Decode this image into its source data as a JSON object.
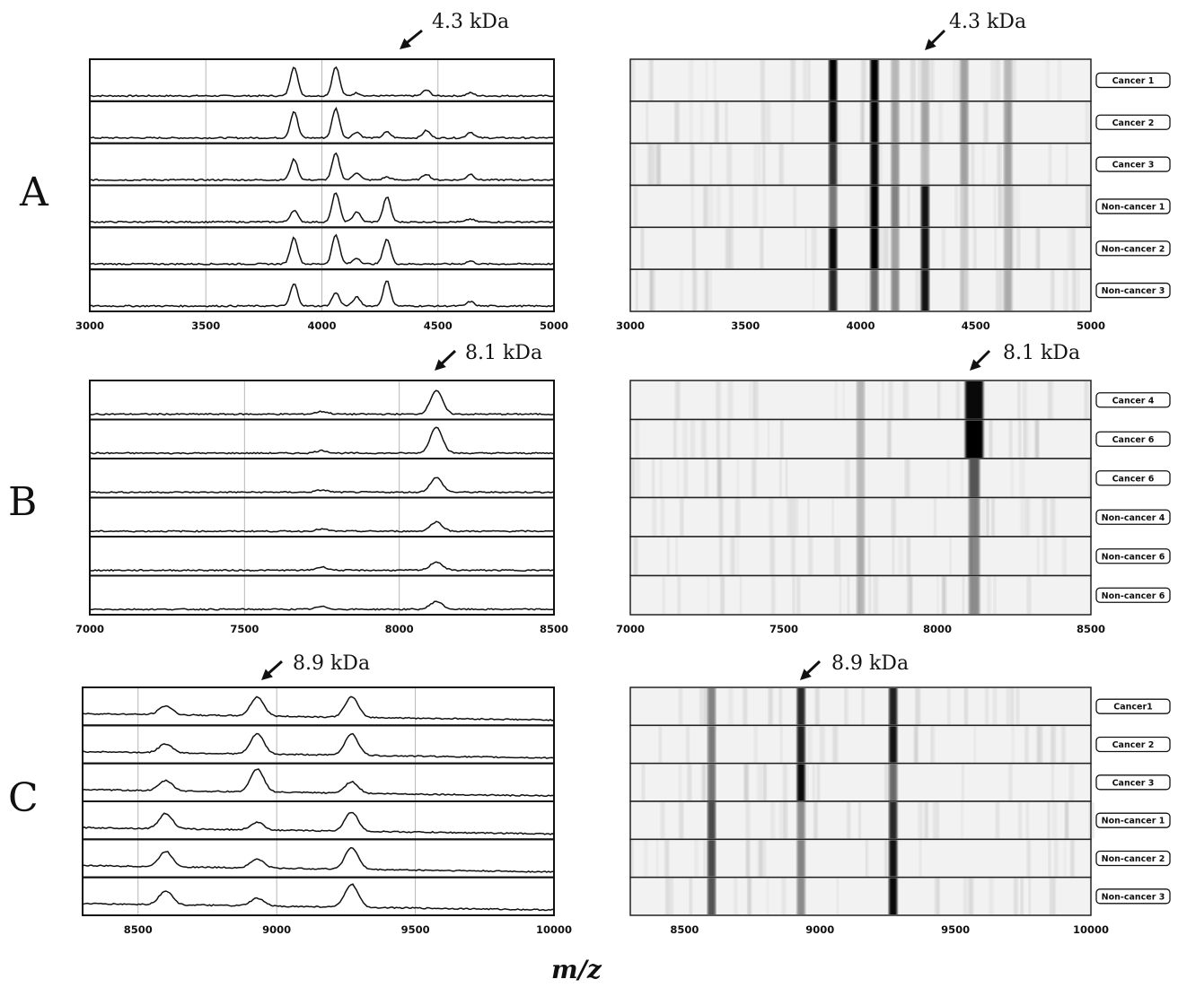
{
  "xlabel": "m/z",
  "panels": [
    {
      "letter": "A",
      "marker": "4.3 kDa",
      "xlim": [
        3000,
        5000
      ],
      "ticks": [
        3000,
        3500,
        4000,
        4500,
        5000
      ],
      "samples": [
        "Cancer 1",
        "Cancer 2",
        "Cancer 3",
        "Non-cancer 1",
        "Non-cancer 2",
        "Non-cancer 3"
      ]
    },
    {
      "letter": "B",
      "marker": "8.1 kDa",
      "xlim": [
        7000,
        8500
      ],
      "ticks": [
        7000,
        7500,
        8000,
        8500
      ],
      "samples": [
        "Cancer 4",
        "Cancer 6",
        "Cancer 6",
        "Non-cancer 4",
        "Non-cancer 6",
        "Non-cancer 6"
      ]
    },
    {
      "letter": "C",
      "marker": "8.9 kDa",
      "xlim": [
        8300,
        10000
      ],
      "ticks": [
        8500,
        9000,
        9500,
        10000
      ],
      "samples": [
        "Cancer1",
        "Cancer 2",
        "Cancer 3",
        "Non-cancer 1",
        "Non-cancer 2",
        "Non-cancer 3"
      ]
    }
  ],
  "chart_data": [
    {
      "type": "line",
      "panel": "A",
      "marker_mz": 4300,
      "x_range": [
        3000,
        5000
      ],
      "peaks_mz": [
        3880,
        4060,
        4150,
        4280,
        4450,
        4640
      ],
      "series": [
        {
          "name": "Cancer 1",
          "values": [
            1.0,
            1.0,
            0.1,
            0.0,
            0.2,
            0.1
          ]
        },
        {
          "name": "Cancer 2",
          "values": [
            0.9,
            1.0,
            0.2,
            0.2,
            0.25,
            0.2
          ]
        },
        {
          "name": "Cancer 3",
          "values": [
            0.7,
            0.9,
            0.25,
            0.1,
            0.2,
            0.2
          ]
        },
        {
          "name": "Non-cancer 1",
          "values": [
            0.4,
            1.0,
            0.35,
            0.85,
            0.0,
            0.1
          ]
        },
        {
          "name": "Non-cancer 2",
          "values": [
            0.9,
            1.0,
            0.2,
            0.85,
            0.0,
            0.1
          ]
        },
        {
          "name": "Non-cancer 3",
          "values": [
            0.75,
            0.45,
            0.3,
            0.85,
            0.0,
            0.15
          ]
        }
      ]
    },
    {
      "type": "line",
      "panel": "B",
      "marker_mz": 8100,
      "x_range": [
        7000,
        8500
      ],
      "peaks_mz": [
        7750,
        8120
      ],
      "series": [
        {
          "name": "Cancer 4",
          "values": [
            0.1,
            0.9
          ]
        },
        {
          "name": "Cancer 6",
          "values": [
            0.1,
            1.0
          ]
        },
        {
          "name": "Cancer 6",
          "values": [
            0.08,
            0.55
          ]
        },
        {
          "name": "Non-cancer 4",
          "values": [
            0.08,
            0.35
          ]
        },
        {
          "name": "Non-cancer 6",
          "values": [
            0.12,
            0.32
          ]
        },
        {
          "name": "Non-cancer 6",
          "values": [
            0.1,
            0.3
          ]
        }
      ]
    },
    {
      "type": "line",
      "panel": "C",
      "marker_mz": 8900,
      "x_range": [
        8300,
        10000
      ],
      "peaks_mz": [
        8600,
        8930,
        9270
      ],
      "series": [
        {
          "name": "Cancer1",
          "values": [
            0.35,
            0.75,
            0.8
          ]
        },
        {
          "name": "Cancer 2",
          "values": [
            0.35,
            0.8,
            0.85
          ]
        },
        {
          "name": "Cancer 3",
          "values": [
            0.4,
            0.9,
            0.45
          ]
        },
        {
          "name": "Non-cancer 1",
          "values": [
            0.6,
            0.3,
            0.75
          ]
        },
        {
          "name": "Non-cancer 2",
          "values": [
            0.6,
            0.35,
            0.85
          ]
        },
        {
          "name": "Non-cancer 3",
          "values": [
            0.55,
            0.3,
            0.9
          ]
        }
      ]
    }
  ]
}
